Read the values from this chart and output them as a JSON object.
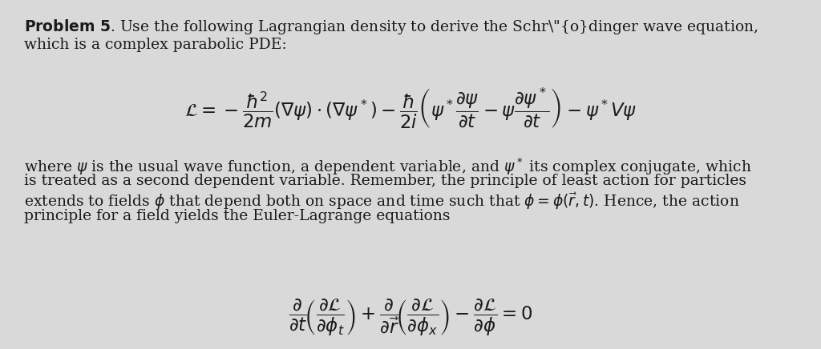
{
  "background_color": "#d9d9d9",
  "text_color": "#1a1a1a",
  "fig_width": 10.24,
  "fig_height": 4.36,
  "line1": "which is a complex parabolic PDE:",
  "body_lines": [
    "where $\\psi$ is the usual wave function, a dependent variable, and $\\psi^*$ its complex conjugate, which",
    "is treated as a second dependent variable. Remember, the principle of least action for particles",
    "extends to fields $\\phi$ that depend both on space and time such that $\\phi = \\phi(\\vec{r}, t)$. Hence, the action",
    "principle for a field yields the Euler-Lagrange equations"
  ]
}
